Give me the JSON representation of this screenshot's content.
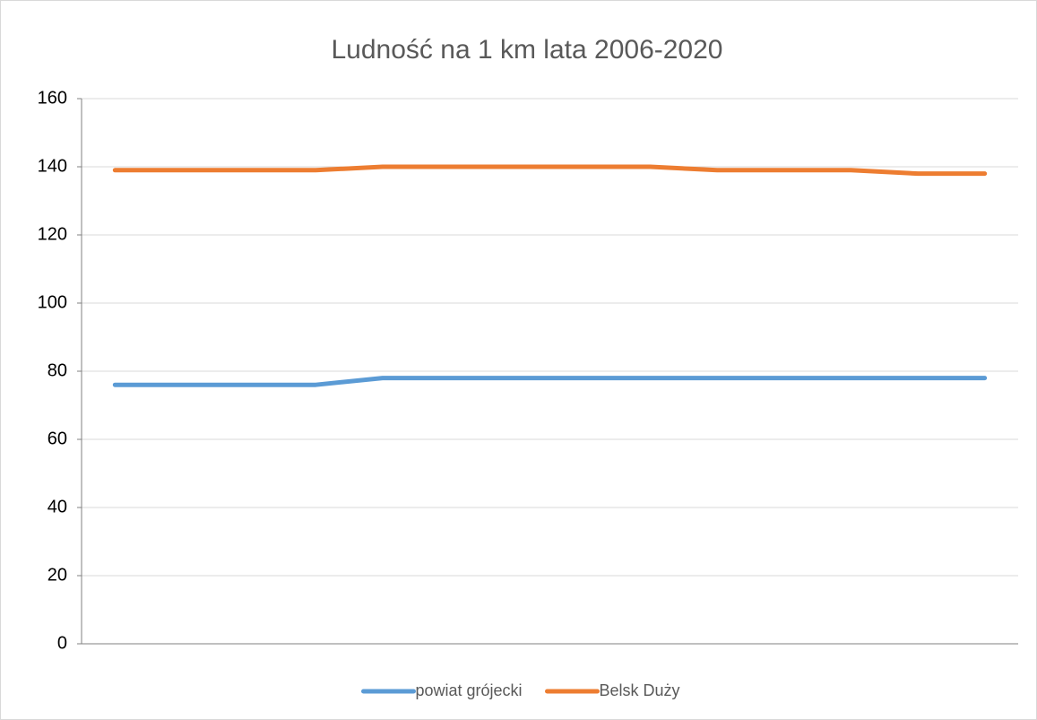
{
  "chart_data": {
    "type": "line",
    "title": "Ludność na 1 km lata 2006-2020",
    "categories": [
      null,
      null,
      null,
      null,
      null,
      null,
      null,
      null,
      null,
      null,
      null,
      null,
      null,
      null
    ],
    "series": [
      {
        "name": "powiat grójecki",
        "color": "#5b9bd5",
        "values": [
          76,
          76,
          76,
          76,
          78,
          78,
          78,
          78,
          78,
          78,
          78,
          78,
          78,
          78
        ]
      },
      {
        "name": "Belsk Duży",
        "color": "#ed7d31",
        "values": [
          139,
          139,
          139,
          139,
          140,
          140,
          140,
          140,
          140,
          139,
          139,
          139,
          138,
          138
        ]
      }
    ],
    "ylim": [
      0,
      160
    ],
    "yticks": [
      0,
      20,
      40,
      60,
      80,
      100,
      120,
      140,
      160
    ],
    "grid": true,
    "legend": "bottom"
  }
}
